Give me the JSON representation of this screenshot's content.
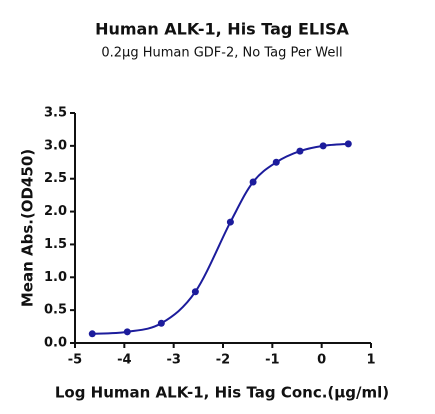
{
  "chart_data": {
    "type": "scatter",
    "title": "Human ALK-1, His Tag ELISA",
    "subtitle": "0.2μg Human GDF-2, No Tag Per Well",
    "x_label": "Log Human ALK-1, His Tag Conc.(μg/ml)",
    "y_label": "Mean Abs.(OD450)",
    "series": [
      {
        "color": "#1c1c9c",
        "x": [
          -4.65,
          -3.94,
          -3.25,
          -2.56,
          -1.85,
          -1.39,
          -0.92,
          -0.44,
          0.03,
          0.54
        ],
        "values": [
          0.14,
          0.17,
          0.3,
          0.78,
          1.84,
          2.45,
          2.75,
          2.92,
          3.0,
          3.03
        ]
      }
    ],
    "xlim": [
      -5,
      1
    ],
    "xticks": [
      -5,
      -4,
      -3,
      -2,
      -1,
      0,
      1
    ],
    "ylim": [
      0,
      3.5
    ],
    "yticks": [
      {
        "value": 0,
        "label": "0.0"
      },
      {
        "value": 0.5,
        "label": "0.5"
      },
      {
        "value": 1,
        "label": "1.0"
      },
      {
        "value": 1.5,
        "label": "1.5"
      },
      {
        "value": 2,
        "label": "2.0"
      },
      {
        "value": 2.5,
        "label": "2.5"
      },
      {
        "value": 3,
        "label": "3.0"
      },
      {
        "value": 3.5,
        "label": "3.5"
      }
    ]
  }
}
